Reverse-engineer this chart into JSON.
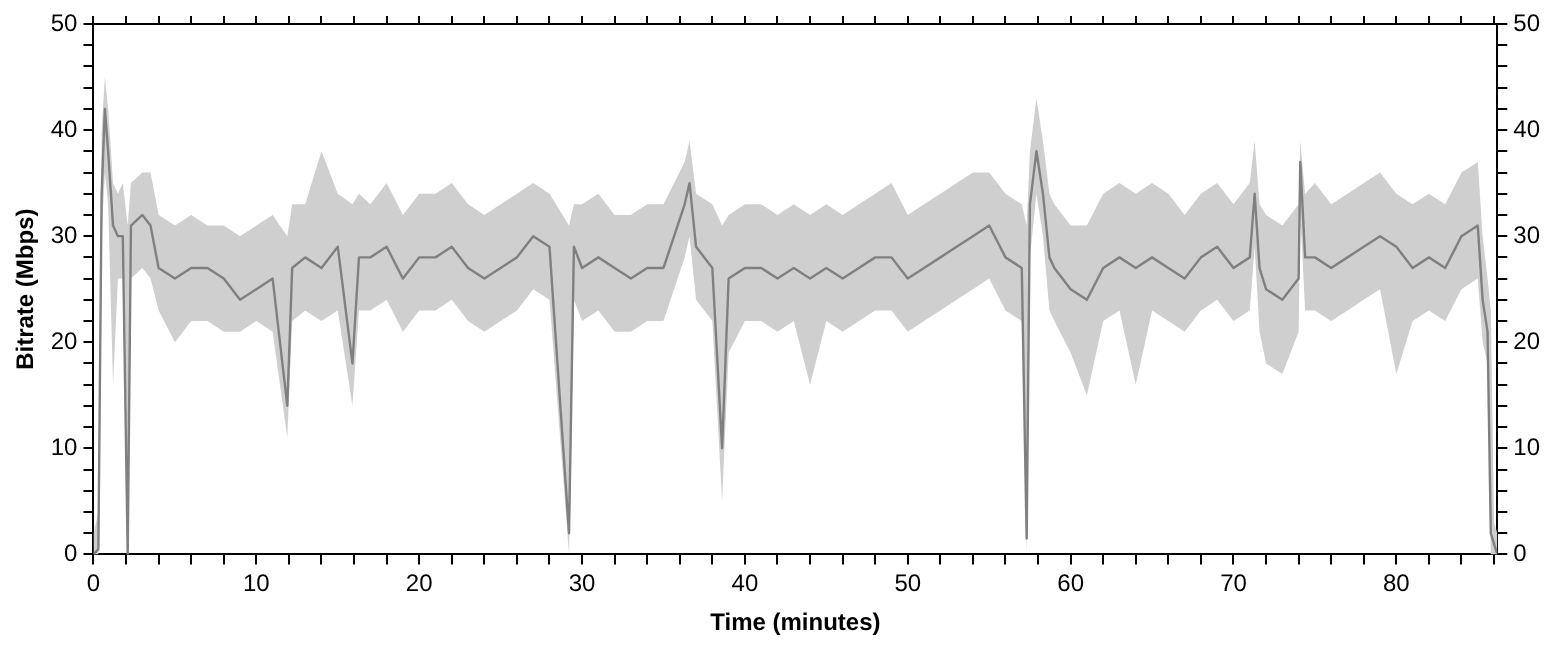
{
  "chart_data": {
    "type": "line",
    "xlabel": "Time (minutes)",
    "ylabel": "Bitrate (Mbps)",
    "xlim": [
      0,
      86.2
    ],
    "xticks": [
      0,
      {
        "value": 2,
        "label": null
      },
      {
        "value": 4,
        "label": null
      },
      {
        "value": 6,
        "label": null
      },
      {
        "value": 8,
        "label": null
      },
      10,
      {
        "value": 12,
        "label": null
      },
      {
        "value": 14,
        "label": null
      },
      {
        "value": 16,
        "label": null
      },
      {
        "value": 18,
        "label": null
      },
      20,
      {
        "value": 22,
        "label": null
      },
      {
        "value": 24,
        "label": null
      },
      {
        "value": 26,
        "label": null
      },
      {
        "value": 28,
        "label": null
      },
      30,
      {
        "value": 32,
        "label": null
      },
      {
        "value": 34,
        "label": null
      },
      {
        "value": 36,
        "label": null
      },
      {
        "value": 38,
        "label": null
      },
      40,
      {
        "value": 42,
        "label": null
      },
      {
        "value": 44,
        "label": null
      },
      {
        "value": 46,
        "label": null
      },
      {
        "value": 48,
        "label": null
      },
      50,
      {
        "value": 52,
        "label": null
      },
      {
        "value": 54,
        "label": null
      },
      {
        "value": 56,
        "label": null
      },
      {
        "value": 58,
        "label": null
      },
      60,
      {
        "value": 62,
        "label": null
      },
      {
        "value": 64,
        "label": null
      },
      {
        "value": 66,
        "label": null
      },
      {
        "value": 68,
        "label": null
      },
      70,
      {
        "value": 72,
        "label": null
      },
      {
        "value": 74,
        "label": null
      },
      {
        "value": 76,
        "label": null
      },
      {
        "value": 78,
        "label": null
      },
      80,
      {
        "value": 82,
        "label": null
      },
      {
        "value": 84,
        "label": null
      },
      {
        "value": 86,
        "label": null
      }
    ],
    "ylim": [
      0,
      50
    ],
    "yticks": [
      0,
      {
        "value": 2,
        "label": null
      },
      {
        "value": 4,
        "label": null
      },
      {
        "value": 6,
        "label": null
      },
      {
        "value": 8,
        "label": null
      },
      10,
      {
        "value": 12,
        "label": null
      },
      {
        "value": 14,
        "label": null
      },
      {
        "value": 16,
        "label": null
      },
      {
        "value": 18,
        "label": null
      },
      20,
      {
        "value": 22,
        "label": null
      },
      {
        "value": 24,
        "label": null
      },
      {
        "value": 26,
        "label": null
      },
      {
        "value": 28,
        "label": null
      },
      30,
      {
        "value": 32,
        "label": null
      },
      {
        "value": 34,
        "label": null
      },
      {
        "value": 36,
        "label": null
      },
      {
        "value": 38,
        "label": null
      },
      40,
      {
        "value": 42,
        "label": null
      },
      {
        "value": 44,
        "label": null
      },
      {
        "value": 46,
        "label": null
      },
      {
        "value": 48,
        "label": null
      },
      50
    ],
    "y2lim": [
      0,
      50
    ],
    "y2ticks": [
      0,
      {
        "value": 2,
        "label": null
      },
      {
        "value": 4,
        "label": null
      },
      {
        "value": 6,
        "label": null
      },
      {
        "value": 8,
        "label": null
      },
      10,
      {
        "value": 12,
        "label": null
      },
      {
        "value": 14,
        "label": null
      },
      {
        "value": 16,
        "label": null
      },
      {
        "value": 18,
        "label": null
      },
      20,
      {
        "value": 22,
        "label": null
      },
      {
        "value": 24,
        "label": null
      },
      {
        "value": 26,
        "label": null
      },
      {
        "value": 28,
        "label": null
      },
      30,
      {
        "value": 32,
        "label": null
      },
      {
        "value": 34,
        "label": null
      },
      {
        "value": 36,
        "label": null
      },
      {
        "value": 38,
        "label": null
      },
      40,
      {
        "value": 42,
        "label": null
      },
      {
        "value": 44,
        "label": null
      },
      {
        "value": 46,
        "label": null
      },
      {
        "value": 48,
        "label": null
      },
      50
    ],
    "grid": false,
    "legend": false,
    "marker": "none",
    "line_style": "solid",
    "series": [
      {
        "color": "#808080",
        "x": [
          0,
          0.3,
          0.5,
          0.7,
          0.9,
          1.2,
          1.5,
          1.8,
          2.1,
          2.3,
          3.0,
          3.5,
          4,
          5,
          6,
          7,
          8,
          9,
          10,
          11,
          11.9,
          12.2,
          13,
          14,
          15,
          15.9,
          16.3,
          17,
          18,
          19,
          20,
          21,
          22,
          23,
          24,
          25,
          26,
          27,
          28,
          29.2,
          29.5,
          30,
          31,
          32,
          33,
          34,
          35,
          36.3,
          36.6,
          37,
          38,
          38.6,
          39,
          40,
          41,
          42,
          43,
          44,
          45,
          46,
          47,
          48,
          49,
          50,
          51,
          52,
          53,
          54,
          55,
          56,
          57,
          57.3,
          57.5,
          57.9,
          58.3,
          58.7,
          59,
          60,
          61,
          62,
          63,
          64,
          65,
          66,
          67,
          68,
          69,
          70,
          71,
          71.3,
          71.6,
          72,
          73,
          74,
          74.1,
          74.4,
          75,
          76,
          77,
          78,
          79,
          80,
          81,
          82,
          83,
          84,
          85,
          85.3,
          85.6,
          85.8,
          86,
          86.2
        ],
        "values": [
          0,
          0.5,
          34,
          42,
          38,
          31,
          30,
          30,
          0,
          31,
          32,
          31,
          27,
          26,
          27,
          27,
          26,
          24,
          25,
          26,
          14,
          27,
          28,
          27,
          29,
          18,
          28,
          28,
          29,
          26,
          28,
          28,
          29,
          27,
          26,
          27,
          28,
          30,
          29,
          2,
          29,
          27,
          28,
          27,
          26,
          27,
          27,
          33,
          35,
          29,
          27,
          10,
          26,
          27,
          27,
          26,
          27,
          26,
          27,
          26,
          27,
          28,
          28,
          26,
          27,
          28,
          29,
          30,
          31,
          28,
          27,
          1.5,
          33,
          38,
          34,
          28,
          27,
          25,
          24,
          27,
          28,
          27,
          28,
          27,
          26,
          28,
          29,
          27,
          28,
          34,
          27,
          25,
          24,
          26,
          37,
          28,
          28,
          27,
          28,
          29,
          30,
          29,
          27,
          28,
          27,
          30,
          31,
          24,
          21,
          2,
          1,
          0
        ],
        "lower": [
          0,
          0,
          30,
          36,
          33,
          16,
          26,
          26,
          0,
          26,
          27,
          26,
          23,
          20,
          22,
          22,
          21,
          21,
          22,
          21,
          11,
          22,
          23,
          22,
          23,
          14,
          23,
          23,
          24,
          21,
          23,
          23,
          24,
          22,
          21,
          22,
          23,
          25,
          24,
          0,
          24,
          22,
          23,
          21,
          21,
          22,
          22,
          28,
          30,
          24,
          22,
          5,
          19,
          22,
          22,
          21,
          22,
          16,
          22,
          21,
          22,
          23,
          23,
          21,
          22,
          23,
          24,
          25,
          26,
          23,
          22,
          0,
          28,
          34,
          30,
          23,
          22,
          19,
          15,
          22,
          23,
          16,
          23,
          22,
          21,
          23,
          24,
          22,
          23,
          29,
          21,
          18,
          17,
          21,
          32,
          23,
          23,
          22,
          23,
          24,
          25,
          17,
          22,
          23,
          22,
          25,
          26,
          20,
          18,
          0,
          0,
          0
        ],
        "upper": [
          2,
          4,
          40,
          45,
          42,
          35,
          34,
          35,
          31,
          35,
          36,
          36,
          32,
          31,
          32,
          31,
          31,
          30,
          31,
          32,
          30,
          33,
          33,
          38,
          34,
          33,
          34,
          33,
          35,
          32,
          34,
          34,
          35,
          33,
          32,
          33,
          34,
          35,
          34,
          31,
          33,
          33,
          34,
          32,
          32,
          33,
          33,
          37,
          39,
          34,
          33,
          31,
          32,
          33,
          33,
          32,
          33,
          32,
          33,
          32,
          33,
          34,
          35,
          32,
          33,
          34,
          35,
          36,
          36,
          34,
          33,
          31,
          38,
          43,
          39,
          34,
          33,
          31,
          31,
          34,
          35,
          34,
          35,
          34,
          32,
          34,
          35,
          33,
          35,
          39,
          33,
          32,
          31,
          33,
          39,
          34,
          35,
          33,
          34,
          35,
          36,
          34,
          33,
          34,
          33,
          36,
          37,
          30,
          26,
          23,
          3,
          2
        ]
      }
    ]
  }
}
